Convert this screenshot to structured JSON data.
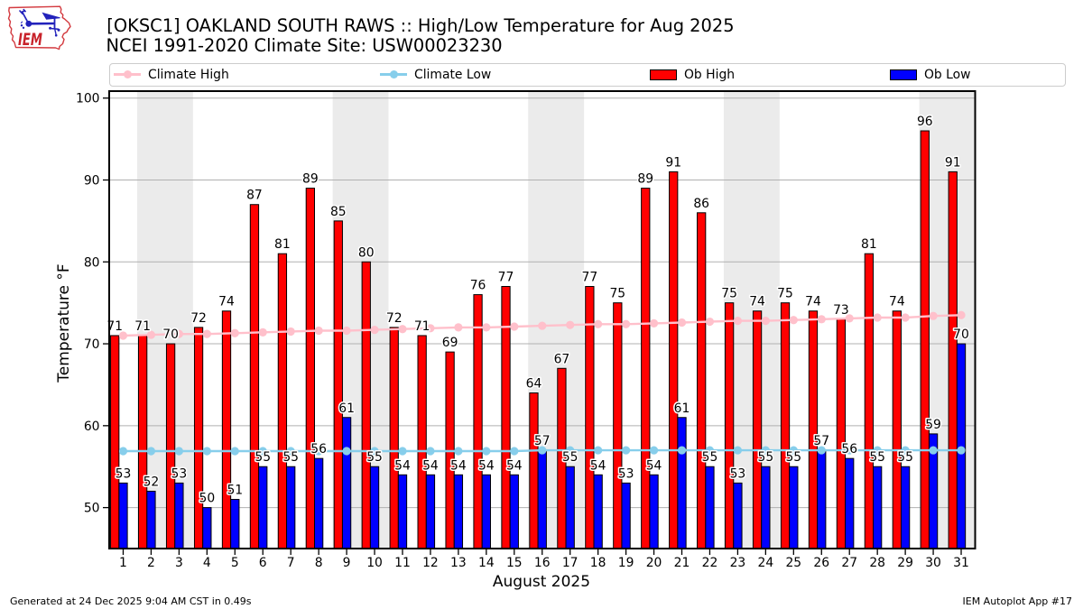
{
  "header": {
    "title": "[OKSC1] OAKLAND SOUTH RAWS :: High/Low Temperature for Aug 2025",
    "subtitle": "NCEI 1991-2020 Climate Site: USW00023230",
    "logo_text": "IEM"
  },
  "legend": {
    "items": [
      {
        "label": "Climate High",
        "type": "line",
        "color": "#ffc0cb"
      },
      {
        "label": "Climate Low",
        "type": "line",
        "color": "#87ceeb"
      },
      {
        "label": "Ob High",
        "type": "patch",
        "color": "#ff0000"
      },
      {
        "label": "Ob Low",
        "type": "patch",
        "color": "#0000ff"
      }
    ]
  },
  "footer": {
    "generated": "Generated at 24 Dec 2025 9:04 AM CST in 0.49s",
    "app": "IEM Autoplot App #17"
  },
  "chart_data": {
    "type": "bar",
    "x": [
      1,
      2,
      3,
      4,
      5,
      6,
      7,
      8,
      9,
      10,
      11,
      12,
      13,
      14,
      15,
      16,
      17,
      18,
      19,
      20,
      21,
      22,
      23,
      24,
      25,
      26,
      27,
      28,
      29,
      30,
      31
    ],
    "xlabel": "August 2025",
    "ylabel": "Temperature °F",
    "yticks": [
      50,
      60,
      70,
      80,
      90,
      100
    ],
    "ylim": [
      45,
      100.85
    ],
    "grid": "horizontal",
    "legend_position": "top",
    "weekend_bands": [
      [
        1.5,
        3.5
      ],
      [
        8.5,
        10.5
      ],
      [
        15.5,
        17.5
      ],
      [
        22.5,
        24.5
      ],
      [
        29.5,
        31.5
      ]
    ],
    "band_color": "#ebebeb",
    "series": [
      {
        "name": "Ob High",
        "type": "bar",
        "color": "#ff0000",
        "values": [
          71,
          71,
          70,
          72,
          74,
          87,
          81,
          89,
          85,
          80,
          72,
          71,
          69,
          76,
          77,
          64,
          67,
          77,
          75,
          89,
          91,
          86,
          75,
          74,
          75,
          74,
          73,
          81,
          74,
          96,
          91
        ]
      },
      {
        "name": "Ob Low",
        "type": "bar",
        "color": "#0000ff",
        "values": [
          53,
          52,
          53,
          50,
          51,
          55,
          55,
          56,
          61,
          55,
          54,
          54,
          54,
          54,
          54,
          57,
          55,
          54,
          53,
          54,
          61,
          55,
          53,
          55,
          55,
          57,
          56,
          55,
          55,
          59,
          70
        ]
      },
      {
        "name": "Climate High",
        "type": "line",
        "color": "#ffc0cb",
        "values": [
          71.0,
          71.1,
          71.2,
          71.2,
          71.3,
          71.4,
          71.5,
          71.6,
          71.6,
          71.7,
          71.8,
          71.9,
          72.0,
          72.0,
          72.1,
          72.2,
          72.3,
          72.4,
          72.4,
          72.5,
          72.6,
          72.7,
          72.8,
          72.8,
          72.9,
          73.0,
          73.1,
          73.2,
          73.2,
          73.4,
          73.5
        ]
      },
      {
        "name": "Climate Low",
        "type": "line",
        "color": "#87ceeb",
        "values": [
          56.9,
          56.9,
          56.9,
          56.9,
          56.9,
          56.9,
          56.9,
          56.9,
          56.9,
          56.9,
          56.9,
          56.9,
          56.9,
          56.9,
          56.9,
          57.0,
          57.0,
          57.0,
          57.0,
          57.0,
          57.0,
          57.0,
          57.0,
          57.0,
          57.0,
          57.0,
          57.0,
          57.0,
          57.0,
          57.0,
          57.0
        ]
      }
    ]
  }
}
